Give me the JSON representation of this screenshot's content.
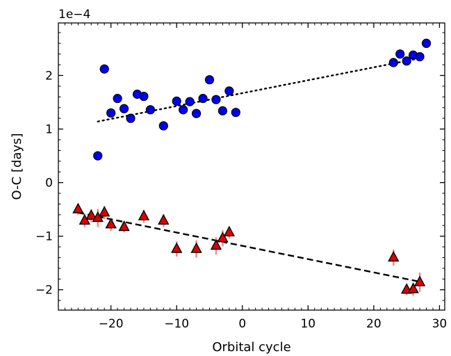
{
  "chart_data": {
    "type": "scatter",
    "title": "",
    "xlabel": "Orbital cycle",
    "ylabel": "O-C [days]",
    "y_scale_label": "1e−4",
    "xlim": [
      -28,
      30.8
    ],
    "ylim": [
      -2.38,
      2.98
    ],
    "x_ticks": [
      -20,
      -10,
      0,
      10,
      20,
      30
    ],
    "x_tick_labels": [
      "−20",
      "−10",
      "0",
      "10",
      "20",
      "30"
    ],
    "y_ticks": [
      -2,
      -1,
      0,
      1,
      2
    ],
    "y_tick_labels": [
      "−2",
      "−1",
      "0",
      "1",
      "2"
    ],
    "x_minor_step": 1,
    "y_minor_step": 0.2,
    "grid": false,
    "legend": "none",
    "series": [
      {
        "marker": "circle",
        "color": "#0000ee",
        "edge_color": "#000000",
        "error_color": "#a8dcdc",
        "x": [
          -22,
          -21,
          -20,
          -19,
          -18,
          -17,
          -16,
          -15,
          -14,
          -12,
          -10,
          -9,
          -8,
          -7,
          -6,
          -5,
          -4,
          -3,
          -2,
          -1,
          23,
          24,
          25,
          26,
          27,
          28
        ],
        "y": [
          0.5,
          2.12,
          1.3,
          1.57,
          1.38,
          1.2,
          1.65,
          1.61,
          1.36,
          1.06,
          1.52,
          1.36,
          1.51,
          1.29,
          1.57,
          1.92,
          1.55,
          1.34,
          1.71,
          1.31,
          2.24,
          2.4,
          2.27,
          2.38,
          2.35,
          2.6
        ],
        "yerr": [
          0.05,
          0.05,
          0.05,
          0.05,
          0.05,
          0.05,
          0.05,
          0.05,
          0.05,
          0.05,
          0.05,
          0.05,
          0.05,
          0.05,
          0.05,
          0.05,
          0.05,
          0.05,
          0.05,
          0.05,
          0.05,
          0.05,
          0.05,
          0.05,
          0.05,
          0.05
        ],
        "fit": {
          "style": "dotted",
          "color": "#000000",
          "x": [
            -22,
            27
          ],
          "y": [
            1.14,
            2.32
          ]
        }
      },
      {
        "marker": "triangle",
        "color": "#dd0000",
        "edge_color": "#000000",
        "error_color": "#ee8888",
        "x": [
          -25,
          -24,
          -23,
          -22,
          -21,
          -20,
          -18,
          -15,
          -12,
          -10,
          -7,
          -4,
          -3,
          -2,
          23,
          25,
          26,
          27
        ],
        "y": [
          -0.5,
          -0.71,
          -0.62,
          -0.66,
          -0.56,
          -0.78,
          -0.83,
          -0.63,
          -0.71,
          -1.24,
          -1.24,
          -1.18,
          -1.04,
          -0.93,
          -1.4,
          -2.0,
          -1.99,
          -1.86
        ],
        "yerr": [
          0.1,
          0.12,
          0.12,
          0.17,
          0.12,
          0.12,
          0.1,
          0.12,
          0.12,
          0.14,
          0.16,
          0.16,
          0.15,
          0.11,
          0.15,
          0.1,
          0.12,
          0.18
        ],
        "fit": {
          "style": "dashed",
          "color": "#000000",
          "x": [
            -25,
            27
          ],
          "y": [
            -0.56,
            -1.85
          ]
        }
      }
    ]
  }
}
